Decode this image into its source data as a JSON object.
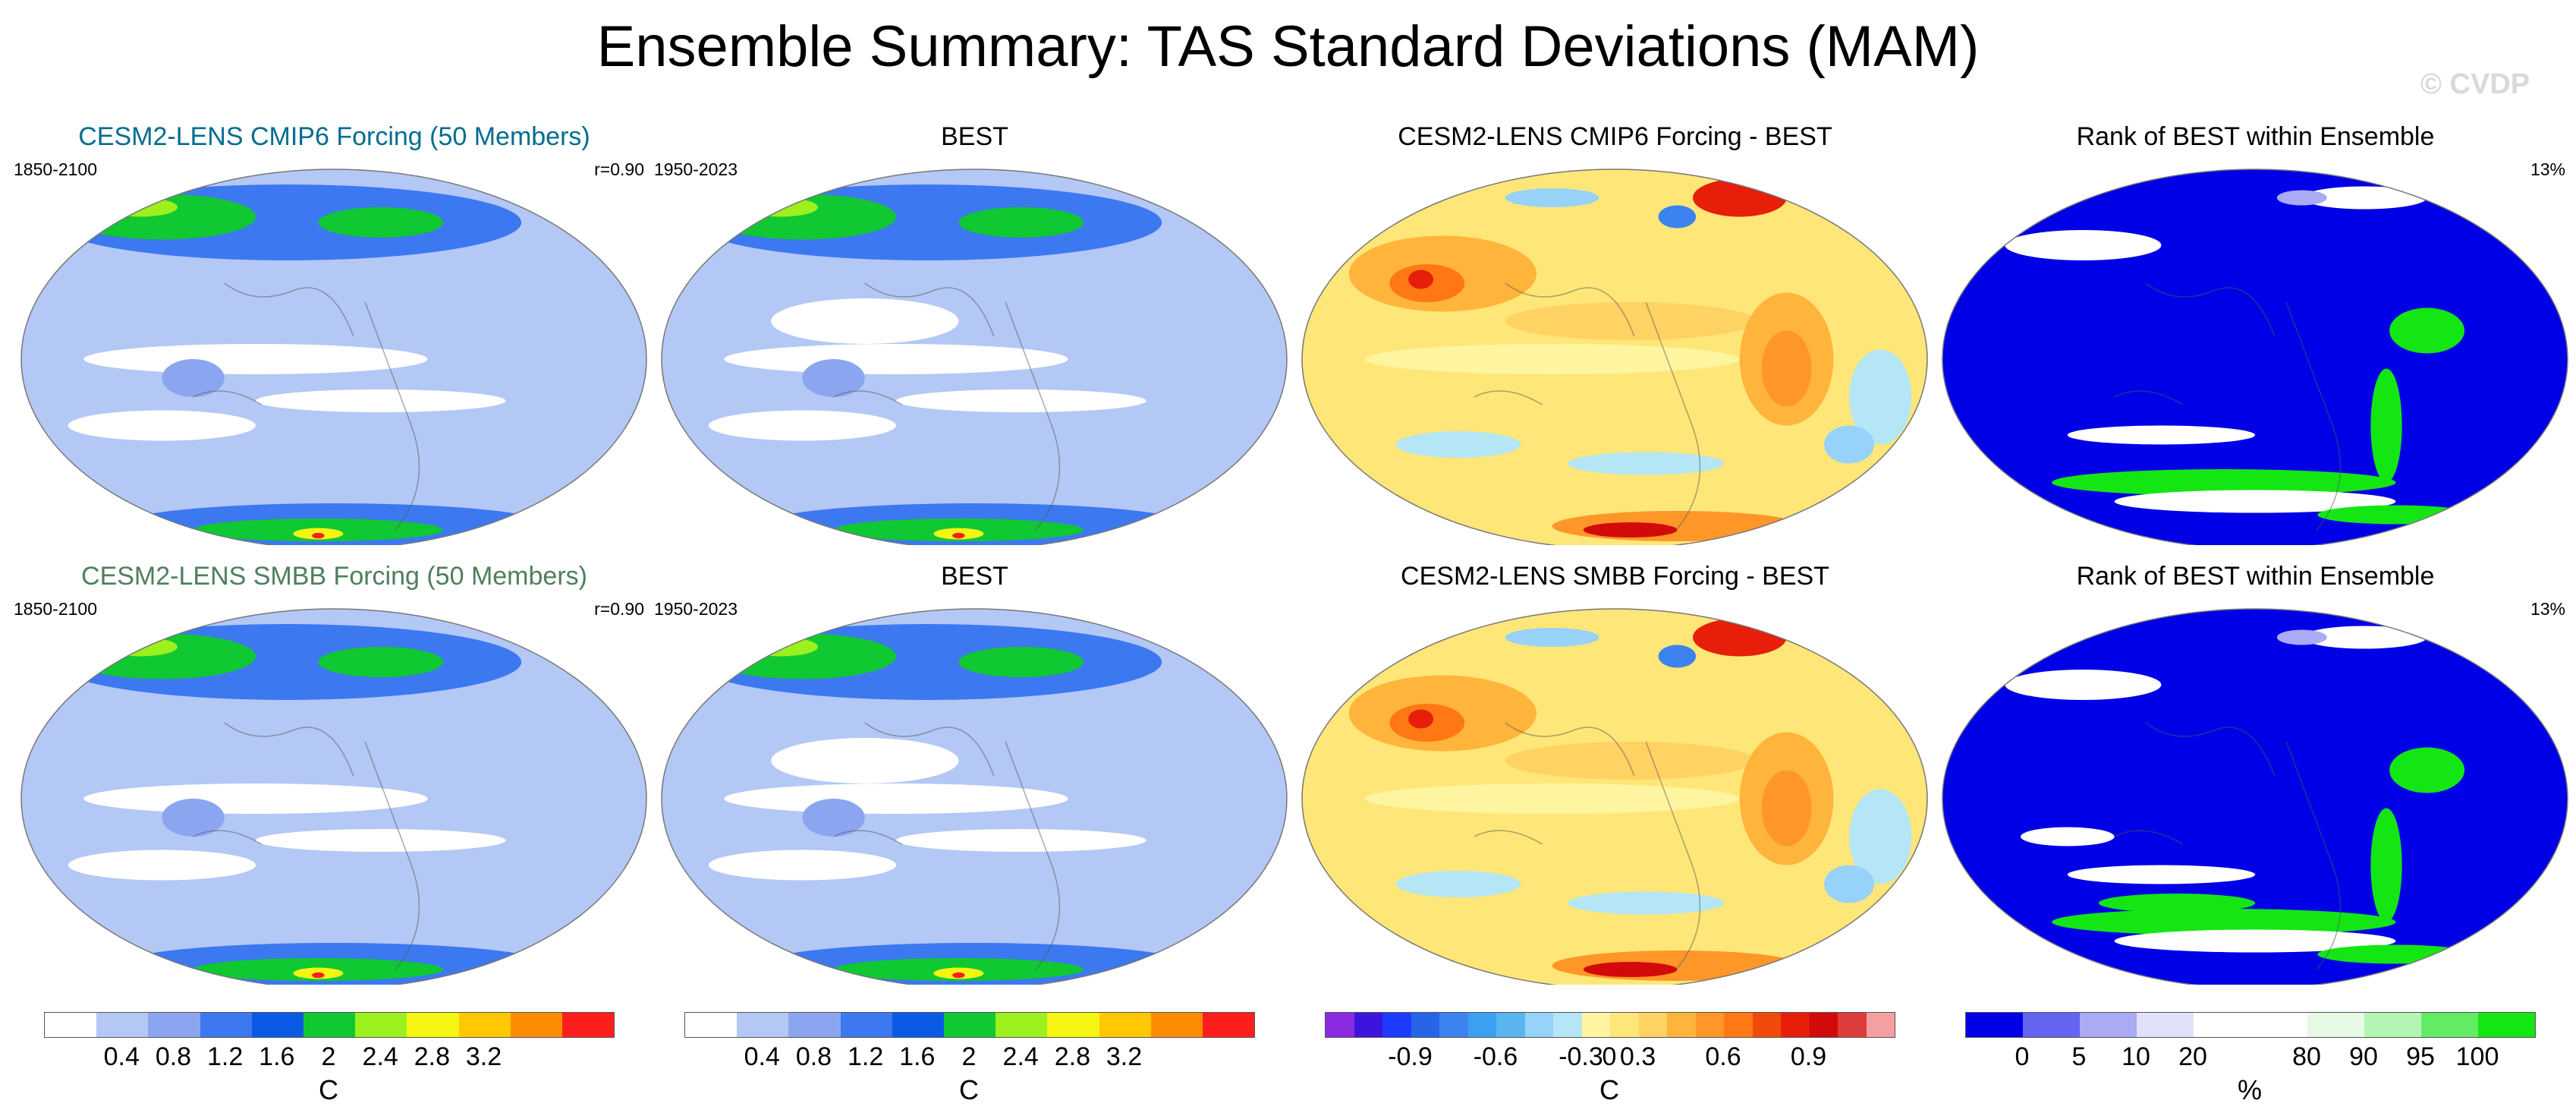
{
  "title": "Ensemble Summary: TAS Standard Deviations (MAM)",
  "watermark": "© CVDP",
  "colors": {
    "cmip6_title": "#006d8f",
    "smbb_title": "#4e7e5e"
  },
  "panels": [
    {
      "title": "CESM2-LENS CMIP6 Forcing (50 Members)",
      "left": "1850-2100",
      "right": "r=0.90",
      "kind": "std",
      "variant": "ens"
    },
    {
      "title": "BEST",
      "left": "1950-2023",
      "right": "",
      "kind": "std",
      "variant": "obs"
    },
    {
      "title": "CESM2-LENS CMIP6 Forcing - BEST",
      "left": "",
      "right": "",
      "kind": "diff",
      "variant": "a"
    },
    {
      "title": "Rank of BEST within Ensemble",
      "left": "",
      "right": "13%",
      "kind": "rank",
      "variant": "a"
    },
    {
      "title": "CESM2-LENS SMBB Forcing (50 Members)",
      "left": "1850-2100",
      "right": "r=0.90",
      "kind": "std",
      "variant": "ens"
    },
    {
      "title": "BEST",
      "left": "1950-2023",
      "right": "",
      "kind": "std",
      "variant": "obs"
    },
    {
      "title": "CESM2-LENS SMBB Forcing - BEST",
      "left": "",
      "right": "",
      "kind": "diff",
      "variant": "b"
    },
    {
      "title": "Rank of BEST within Ensemble",
      "left": "",
      "right": "13%",
      "kind": "rank",
      "variant": "b"
    }
  ],
  "colorbars": [
    {
      "ticks": [
        "0.4",
        "0.8",
        "1.2",
        "1.6",
        "2",
        "2.4",
        "2.8",
        "3.2"
      ],
      "unit": "C",
      "colors": [
        "#ffffff",
        "#b4c8f5",
        "#8ca5f0",
        "#3c78f0",
        "#0a5ae6",
        "#0fc832",
        "#9bf01e",
        "#f5f514",
        "#ffc800",
        "#ff8c00",
        "#ff1e1e"
      ]
    },
    {
      "ticks": [
        "0.4",
        "0.8",
        "1.2",
        "1.6",
        "2",
        "2.4",
        "2.8",
        "3.2"
      ],
      "unit": "C",
      "colors": [
        "#ffffff",
        "#b4c8f5",
        "#8ca5f0",
        "#3c78f0",
        "#0a5ae6",
        "#0fc832",
        "#9bf01e",
        "#f5f514",
        "#ffc800",
        "#ff8c00",
        "#ff1e1e"
      ]
    },
    {
      "ticks": [
        "-0.9",
        "-0.6",
        "-0.3",
        "0",
        "0.3",
        "0.6",
        "0.9"
      ],
      "unit": "C",
      "colors": [
        "#8a2be2",
        "#3c14dc",
        "#1e3cff",
        "#2864e6",
        "#3c82f0",
        "#3ca0f0",
        "#5ab4f0",
        "#96d2fa",
        "#b4e6f5",
        "#fff5a0",
        "#ffe678",
        "#ffd264",
        "#ffb43c",
        "#ff9628",
        "#ff7814",
        "#f04a0a",
        "#e61e0a",
        "#d20a0a",
        "#dc3c3c",
        "#f5a0a0"
      ]
    },
    {
      "ticks": [
        "0",
        "5",
        "10",
        "20",
        "80",
        "90",
        "95",
        "100"
      ],
      "unit": "%",
      "colors": [
        "#0000e6",
        "#6464f0",
        "#aaaaf5",
        "#e1e1fa",
        "#ffffff",
        "#ffffff",
        "#e6fae6",
        "#b4f5b4",
        "#64eb64",
        "#14e614"
      ]
    }
  ]
}
